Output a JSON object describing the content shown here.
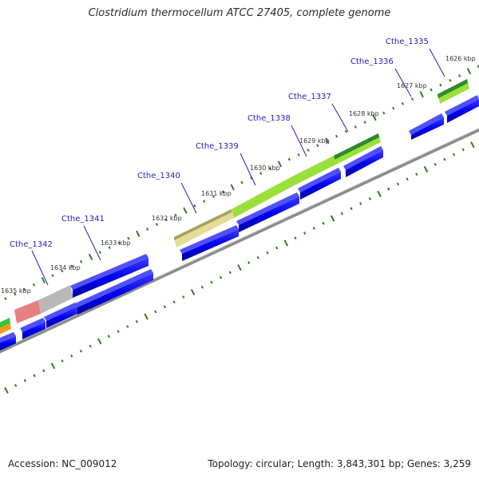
{
  "title": "Clostridium thermocellum ATCC 27405, complete genome",
  "footer": {
    "accession": "Accession: NC_009012",
    "summary": "Topology: circular; Length: 3,843,301 bp; Genes: 3,259"
  },
  "kbp_labels": [
    "1626 kbp",
    "1627 kbp",
    "1628 kbp",
    "1629 kbp",
    "1630 kbp",
    "1631 kbp",
    "1632 kbp",
    "1633 kbp",
    "1634 kbp",
    "1635 kbp"
  ],
  "genes": [
    {
      "name": "Cthe_1335"
    },
    {
      "name": "Cthe_1336"
    },
    {
      "name": "Cthe_1337"
    },
    {
      "name": "Cthe_1338"
    },
    {
      "name": "Cthe_1339"
    },
    {
      "name": "Cthe_1340"
    },
    {
      "name": "Cthe_1341"
    },
    {
      "name": "Cthe_1342"
    }
  ],
  "colors": {
    "cds_blue": "#0000ee",
    "cog_dark_green": "#2e8b2e",
    "cog_light_green": "#9be03a",
    "cog_khaki": "#e6dc9a",
    "cog_gray": "#b9b9b9",
    "cog_pink": "#e87f7f",
    "cog_orange": "#f59a1a",
    "tick_green": "#2e7d1e",
    "backbone": "#8c8c8c"
  }
}
